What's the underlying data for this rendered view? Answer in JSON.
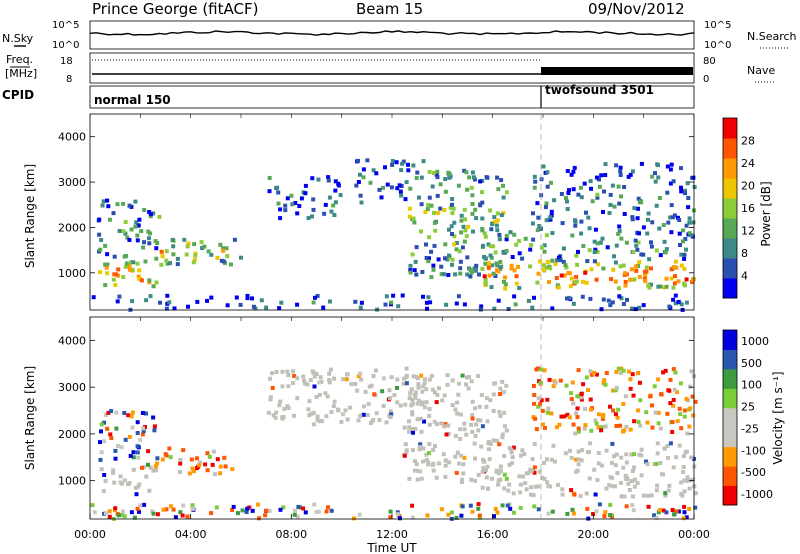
{
  "header": {
    "station": "Prince George (fitACF)",
    "beam": "Beam 15",
    "date": "09/Nov/2012"
  },
  "panels": {
    "nsky_label": "N.Sky",
    "nsky_ticks": [
      "10^5",
      "10^0"
    ],
    "nsearch_label": "N.Search",
    "nsearch_ticks": [
      "10^5",
      "10^0"
    ],
    "freq_label": "Freq.",
    "freq_unit": "[MHz]",
    "freq_ticks": [
      "18",
      "8"
    ],
    "nave_label": "Nave",
    "nave_ticks": [
      "80",
      "0"
    ],
    "cpid_label": "CPID",
    "cpid_segments": [
      {
        "name": "normal 150",
        "start": 0,
        "end": 18
      },
      {
        "name": "twofsound 3501",
        "start": 18,
        "end": 24
      }
    ]
  },
  "colors": {
    "power_scale": [
      "#0000ee",
      "#2a4fb0",
      "#3c8a88",
      "#58a855",
      "#8ccc3a",
      "#eec600",
      "#ff9a00",
      "#ff5500",
      "#ee0000"
    ],
    "velocity_scale": [
      "#ee0000",
      "#ff5500",
      "#ff9a00",
      "#c8c8c0",
      "#c8c8c0",
      "#7acc3a",
      "#3c9a40",
      "#2a56b0",
      "#0000dd"
    ],
    "ground_scatter": "#c0c0b8"
  },
  "chart_data": [
    {
      "type": "heatmap",
      "title": "Power",
      "ylabel": "Slant Range [km]",
      "xlabel": "Time UT",
      "xlim": [
        0,
        24
      ],
      "ylim": [
        180,
        4500
      ],
      "yticks": [
        1000,
        2000,
        3000,
        4000
      ],
      "colorbar": {
        "label": "Power [dB]",
        "ticks": [
          4,
          8,
          12,
          16,
          20,
          24,
          28
        ],
        "range": [
          0,
          32
        ]
      },
      "echo_regions": [
        {
          "t0": 0.3,
          "t1": 2.6,
          "r0": 650,
          "r1": 1250,
          "level": 0.8
        },
        {
          "t0": 0.2,
          "t1": 2.8,
          "r0": 1300,
          "r1": 2600,
          "level": 0.3
        },
        {
          "t0": 2.5,
          "t1": 5.8,
          "r0": 1150,
          "r1": 1750,
          "level": 0.6
        },
        {
          "t0": 5.7,
          "t1": 6.0,
          "r0": 1200,
          "r1": 1400,
          "level": 0.25
        },
        {
          "t0": 7.0,
          "t1": 10.0,
          "r0": 2200,
          "r1": 3200,
          "level": 0.2
        },
        {
          "t0": 10.5,
          "t1": 13.2,
          "r0": 2400,
          "r1": 3500,
          "level": 0.2
        },
        {
          "t0": 12.6,
          "t1": 16.5,
          "r0": 900,
          "r1": 3300,
          "level": 0.45
        },
        {
          "t0": 15.5,
          "t1": 24.0,
          "r0": 650,
          "r1": 1250,
          "level": 0.85
        },
        {
          "t0": 15.5,
          "t1": 24.0,
          "r0": 1250,
          "r1": 2000,
          "level": 0.35
        },
        {
          "t0": 17.5,
          "t1": 24.0,
          "r0": 2000,
          "r1": 3400,
          "level": 0.25
        },
        {
          "t0": 0.0,
          "t1": 24.0,
          "r0": 180,
          "r1": 500,
          "level": 0.15
        }
      ]
    },
    {
      "type": "heatmap",
      "title": "Velocity",
      "ylabel": "Slant Range [km]",
      "xlabel": "Time UT",
      "xlim": [
        0,
        24
      ],
      "ylim": [
        180,
        4500
      ],
      "yticks": [
        1000,
        2000,
        3000,
        4000
      ],
      "xticks": [
        "00:00",
        "04:00",
        "08:00",
        "12:00",
        "16:00",
        "20:00",
        "00:00"
      ],
      "colorbar": {
        "label": "Velocity [m s⁻¹]",
        "ticks": [
          1000,
          500,
          100,
          25,
          -25,
          -100,
          -500,
          -1000
        ]
      },
      "echo_regions": [
        {
          "t0": 0.3,
          "t1": 2.6,
          "r0": 700,
          "r1": 1300,
          "kind": "ground"
        },
        {
          "t0": 0.3,
          "t1": 2.6,
          "r0": 1300,
          "r1": 2500,
          "kind": "mixed"
        },
        {
          "t0": 2.8,
          "t1": 5.6,
          "r0": 1100,
          "r1": 1700,
          "kind": "away"
        },
        {
          "t0": 7.0,
          "t1": 13.2,
          "r0": 2200,
          "r1": 3400,
          "kind": "ground"
        },
        {
          "t0": 12.4,
          "t1": 16.5,
          "r0": 900,
          "r1": 3300,
          "kind": "ground"
        },
        {
          "t0": 15.5,
          "t1": 24.0,
          "r0": 650,
          "r1": 1800,
          "kind": "ground"
        },
        {
          "t0": 17.5,
          "t1": 24.0,
          "r0": 2000,
          "r1": 3400,
          "kind": "away"
        },
        {
          "t0": 0.0,
          "t1": 24.0,
          "r0": 180,
          "r1": 500,
          "kind": "mixed"
        }
      ]
    }
  ]
}
